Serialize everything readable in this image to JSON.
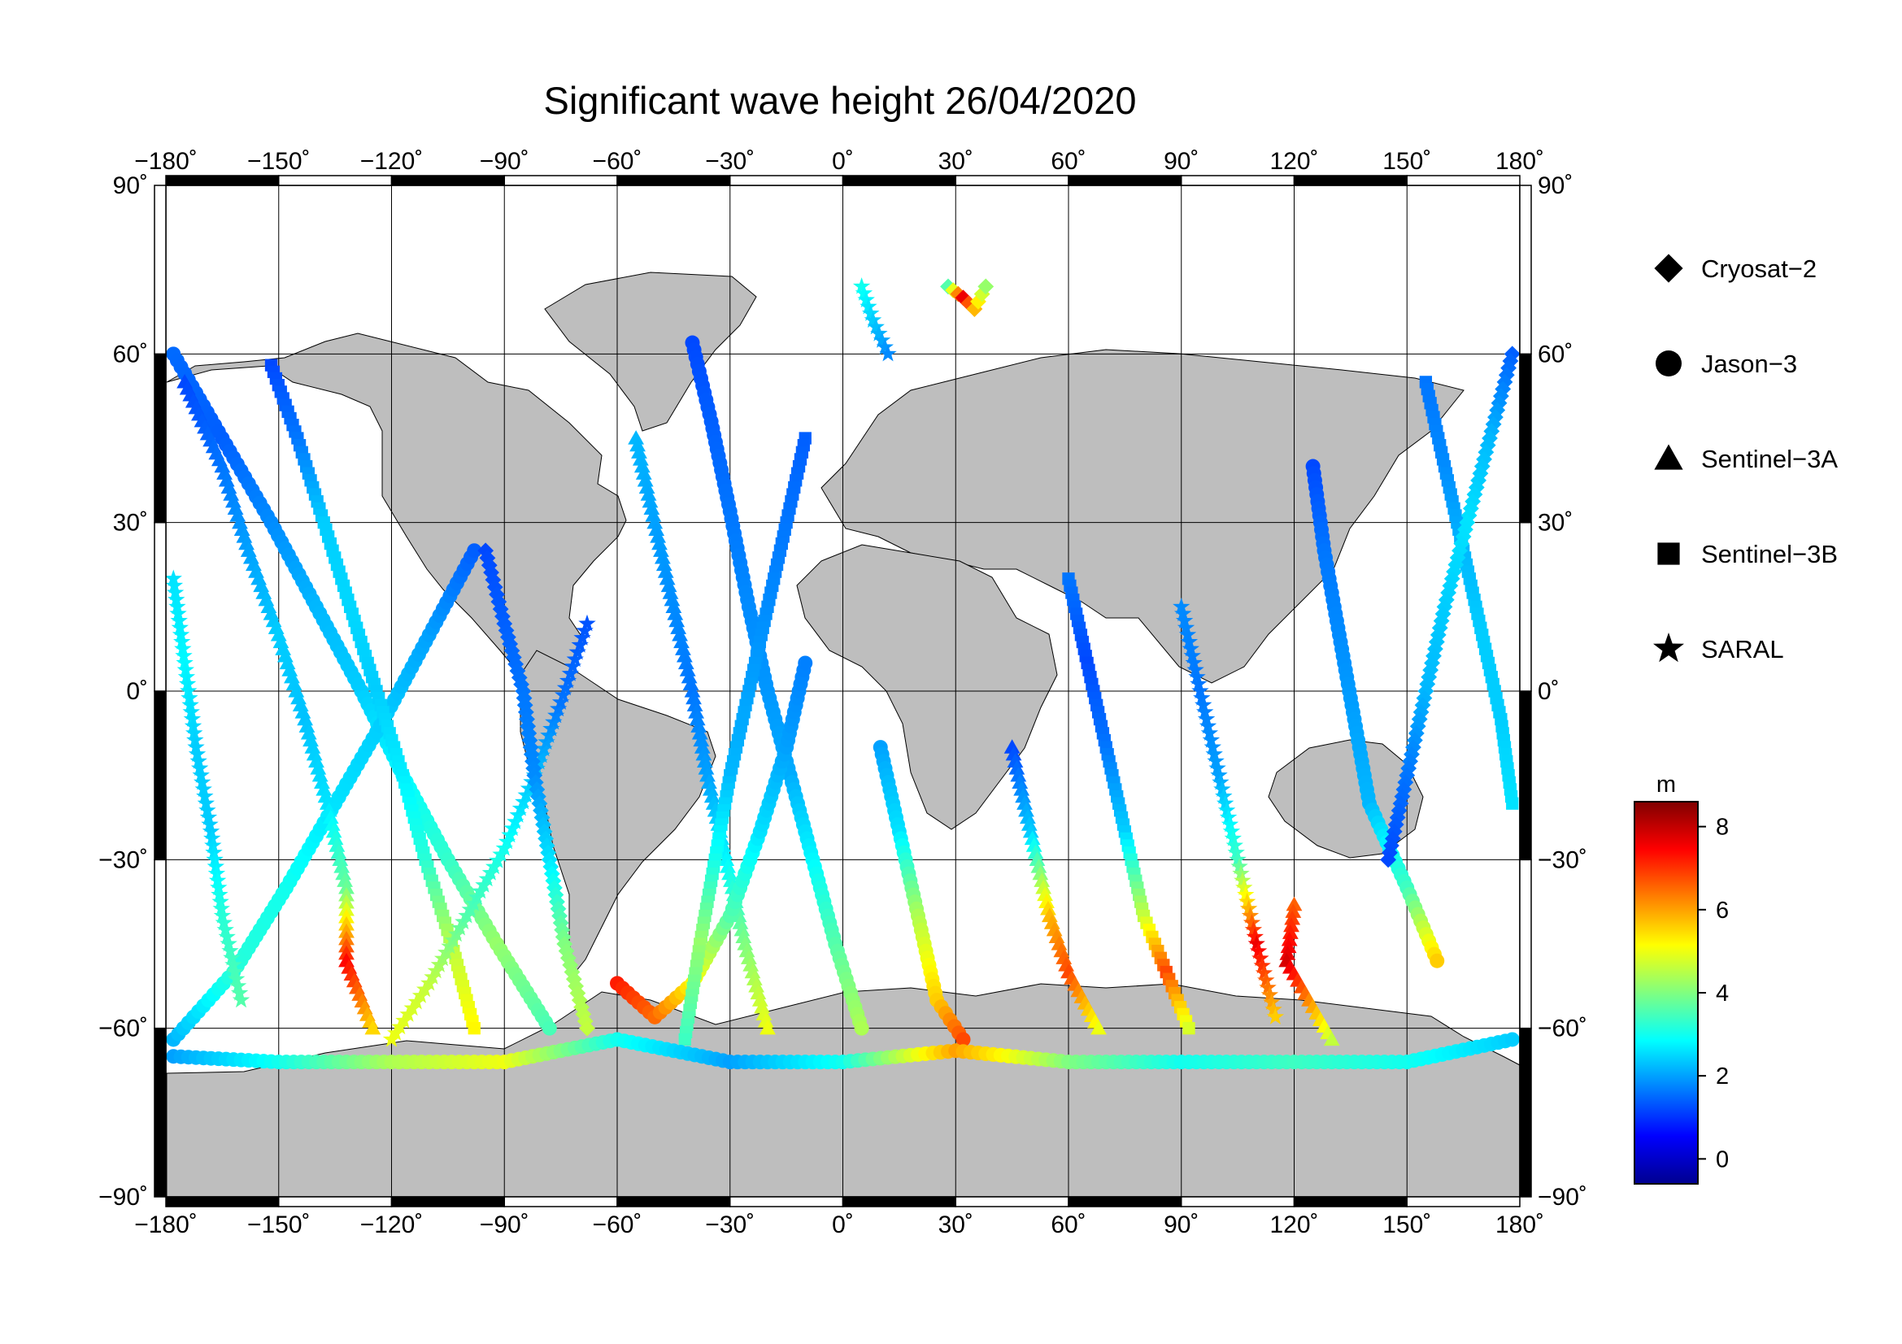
{
  "title": "Significant wave height 26/04/2020",
  "map": {
    "lon_range": [
      -180,
      180
    ],
    "lat_range": [
      -90,
      90
    ],
    "lon_ticks": [
      -180,
      -150,
      -120,
      -90,
      -60,
      -30,
      0,
      30,
      60,
      90,
      120,
      150,
      180
    ],
    "lat_ticks": [
      -90,
      -60,
      -30,
      0,
      30,
      60,
      90
    ],
    "lon_tick_labels": [
      "−180˚",
      "−150˚",
      "−120˚",
      "−90˚",
      "−60˚",
      "−30˚",
      "0˚",
      "30˚",
      "60˚",
      "90˚",
      "120˚",
      "150˚",
      "180˚"
    ],
    "lat_tick_labels": [
      "−90˚",
      "−60˚",
      "−30˚",
      "0˚",
      "30˚",
      "60˚",
      "90˚"
    ],
    "land_color": "#bebebe",
    "ocean_color": "#ffffff",
    "grid": true
  },
  "legend": {
    "placement": "right",
    "items": [
      {
        "symbol": "diamond",
        "label": "Cryosat−2"
      },
      {
        "symbol": "circle",
        "label": "Jason−3"
      },
      {
        "symbol": "triangle",
        "label": "Sentinel−3A"
      },
      {
        "symbol": "square",
        "label": "Sentinel−3B"
      },
      {
        "symbol": "star",
        "label": "SARAL"
      }
    ]
  },
  "colorbar": {
    "unit": "m",
    "range": [
      -0.6,
      8.6
    ],
    "ticks": [
      0,
      2,
      4,
      6,
      8
    ],
    "tick_labels": [
      "0",
      "2",
      "4",
      "6",
      "8"
    ],
    "colors": [
      "#00008f",
      "#0000ff",
      "#0080ff",
      "#00ffff",
      "#80ff80",
      "#ffff00",
      "#ff8000",
      "#ff0000",
      "#800000"
    ]
  },
  "chart_data": {
    "type": "scatter",
    "title": "Significant wave height 26/04/2020",
    "xlabel": "",
    "ylabel": "",
    "xlim": [
      -180,
      180
    ],
    "ylim": [
      -90,
      90
    ],
    "value_unit": "m",
    "tracks": [
      {
        "symbol": "circle",
        "points": [
          [
            -178,
            60,
            1.5
          ],
          [
            -165,
            45,
            1.4
          ],
          [
            -152,
            30,
            1.8
          ],
          [
            -140,
            15,
            2.2
          ],
          [
            -128,
            0,
            2.4
          ],
          [
            -117,
            -15,
            2.8
          ],
          [
            -105,
            -30,
            3.3
          ],
          [
            -92,
            -45,
            4.2
          ],
          [
            -78,
            -60,
            3.5
          ]
        ]
      },
      {
        "symbol": "circle",
        "points": [
          [
            -178,
            -62,
            2.2
          ],
          [
            -162,
            -50,
            3.2
          ],
          [
            -148,
            -35,
            3.0
          ],
          [
            -135,
            -20,
            2.6
          ],
          [
            -122,
            -5,
            2.4
          ],
          [
            -110,
            10,
            2.0
          ],
          [
            -98,
            25,
            1.4
          ]
        ]
      },
      {
        "symbol": "triangle",
        "points": [
          [
            -175,
            55,
            1.2
          ],
          [
            -165,
            40,
            1.6
          ],
          [
            -158,
            25,
            2.0
          ],
          [
            -150,
            10,
            2.4
          ],
          [
            -143,
            -5,
            2.3
          ],
          [
            -137,
            -20,
            2.6
          ],
          [
            -132,
            -35,
            3.8
          ],
          [
            -132,
            -48,
            7.4
          ],
          [
            -125,
            -60,
            5.5
          ]
        ]
      },
      {
        "symbol": "square",
        "points": [
          [
            -152,
            58,
            1.2
          ],
          [
            -145,
            45,
            1.6
          ],
          [
            -138,
            30,
            2.4
          ],
          [
            -131,
            15,
            2.5
          ],
          [
            -124,
            0,
            2.4
          ],
          [
            -117,
            -15,
            2.7
          ],
          [
            -111,
            -30,
            3.2
          ],
          [
            -104,
            -45,
            4.5
          ],
          [
            -98,
            -60,
            5.2
          ]
        ]
      },
      {
        "symbol": "star",
        "points": [
          [
            -120,
            -62,
            5.0
          ],
          [
            -110,
            -52,
            4.6
          ],
          [
            -100,
            -40,
            3.6
          ],
          [
            -90,
            -28,
            3.0
          ],
          [
            -82,
            -15,
            2.3
          ],
          [
            -75,
            -2,
            1.6
          ],
          [
            -68,
            12,
            1.3
          ]
        ]
      },
      {
        "symbol": "diamond",
        "points": [
          [
            -95,
            25,
            1.2
          ],
          [
            -90,
            12,
            1.4
          ],
          [
            -85,
            0,
            1.6
          ],
          [
            -82,
            -15,
            1.8
          ],
          [
            -78,
            -30,
            2.6
          ],
          [
            -74,
            -45,
            4.0
          ],
          [
            -68,
            -60,
            4.6
          ]
        ]
      },
      {
        "symbol": "circle",
        "points": [
          [
            -40,
            62,
            1.2
          ],
          [
            -35,
            48,
            1.4
          ],
          [
            -30,
            32,
            1.6
          ],
          [
            -25,
            15,
            1.8
          ],
          [
            -20,
            0,
            1.9
          ],
          [
            -14,
            -15,
            2.1
          ],
          [
            -8,
            -30,
            2.8
          ],
          [
            -2,
            -45,
            3.6
          ],
          [
            5,
            -60,
            4.4
          ]
        ]
      },
      {
        "symbol": "triangle",
        "points": [
          [
            -55,
            45,
            2.2
          ],
          [
            -50,
            30,
            2.0
          ],
          [
            -45,
            15,
            1.8
          ],
          [
            -40,
            0,
            1.6
          ],
          [
            -36,
            -15,
            2.0
          ],
          [
            -31,
            -30,
            2.8
          ],
          [
            -26,
            -45,
            4.0
          ],
          [
            -20,
            -60,
            5.0
          ]
        ]
      },
      {
        "symbol": "circle",
        "points": [
          [
            -60,
            -52,
            7.2
          ],
          [
            -50,
            -58,
            6.5
          ],
          [
            -40,
            -52,
            5.2
          ],
          [
            -30,
            -40,
            3.6
          ],
          [
            -22,
            -25,
            2.6
          ],
          [
            -15,
            -10,
            2.0
          ],
          [
            -10,
            5,
            1.7
          ]
        ]
      },
      {
        "symbol": "square",
        "points": [
          [
            -10,
            45,
            1.4
          ],
          [
            -15,
            30,
            1.6
          ],
          [
            -20,
            15,
            1.8
          ],
          [
            -25,
            0,
            2.0
          ],
          [
            -30,
            -15,
            2.2
          ],
          [
            -34,
            -30,
            3.0
          ],
          [
            -38,
            -45,
            4.2
          ],
          [
            -42,
            -62,
            3.4
          ]
        ]
      },
      {
        "symbol": "star",
        "points": [
          [
            5,
            72,
            3.0
          ],
          [
            8,
            66,
            2.4
          ],
          [
            12,
            60,
            1.8
          ]
        ]
      },
      {
        "symbol": "diamond",
        "points": [
          [
            28,
            72,
            3.6
          ],
          [
            32,
            70,
            7.6
          ],
          [
            35,
            68,
            5.8
          ],
          [
            38,
            72,
            4.2
          ]
        ]
      },
      {
        "symbol": "circle",
        "points": [
          [
            10,
            -10,
            2.0
          ],
          [
            15,
            -25,
            2.6
          ],
          [
            20,
            -40,
            4.4
          ],
          [
            25,
            -55,
            5.6
          ],
          [
            32,
            -62,
            6.8
          ]
        ]
      },
      {
        "symbol": "triangle",
        "points": [
          [
            45,
            -10,
            1.2
          ],
          [
            50,
            -25,
            2.4
          ],
          [
            55,
            -40,
            5.8
          ],
          [
            60,
            -50,
            6.8
          ],
          [
            68,
            -60,
            5.0
          ]
        ]
      },
      {
        "symbol": "square",
        "points": [
          [
            60,
            20,
            1.6
          ],
          [
            65,
            5,
            1.2
          ],
          [
            70,
            -10,
            1.6
          ],
          [
            75,
            -25,
            2.4
          ],
          [
            80,
            -40,
            4.6
          ],
          [
            86,
            -50,
            6.8
          ],
          [
            92,
            -60,
            4.8
          ]
        ]
      },
      {
        "symbol": "star",
        "points": [
          [
            90,
            15,
            1.8
          ],
          [
            95,
            0,
            1.6
          ],
          [
            100,
            -15,
            2.0
          ],
          [
            105,
            -30,
            3.4
          ],
          [
            110,
            -45,
            7.6
          ],
          [
            115,
            -58,
            5.6
          ]
        ]
      },
      {
        "symbol": "circle",
        "points": [
          [
            125,
            40,
            1.2
          ],
          [
            128,
            25,
            1.6
          ],
          [
            132,
            10,
            1.8
          ],
          [
            136,
            -5,
            2.0
          ],
          [
            140,
            -20,
            2.2
          ],
          [
            150,
            -35,
            3.4
          ],
          [
            158,
            -48,
            5.6
          ]
        ]
      },
      {
        "symbol": "triangle",
        "points": [
          [
            120,
            -38,
            6.6
          ],
          [
            118,
            -48,
            7.8
          ],
          [
            124,
            -55,
            6.2
          ],
          [
            130,
            -62,
            4.6
          ]
        ]
      },
      {
        "symbol": "square",
        "points": [
          [
            155,
            55,
            1.6
          ],
          [
            160,
            40,
            1.8
          ],
          [
            165,
            25,
            2.2
          ],
          [
            170,
            10,
            2.4
          ],
          [
            175,
            -5,
            2.4
          ],
          [
            178,
            -20,
            2.6
          ]
        ]
      },
      {
        "symbol": "diamond",
        "points": [
          [
            178,
            60,
            1.4
          ],
          [
            172,
            45,
            2.2
          ],
          [
            166,
            30,
            2.6
          ],
          [
            160,
            15,
            2.4
          ],
          [
            155,
            0,
            2.2
          ],
          [
            150,
            -15,
            1.6
          ],
          [
            145,
            -30,
            1.2
          ]
        ]
      },
      {
        "symbol": "star",
        "points": [
          [
            -178,
            20,
            2.6
          ],
          [
            -175,
            5,
            2.8
          ],
          [
            -172,
            -10,
            2.4
          ],
          [
            -168,
            -25,
            2.4
          ],
          [
            -165,
            -40,
            3.2
          ],
          [
            -160,
            -55,
            3.6
          ]
        ]
      },
      {
        "symbol": "circle",
        "points": [
          [
            -178,
            -65,
            2.0
          ],
          [
            -150,
            -66,
            3.0
          ],
          [
            -120,
            -66,
            4.4
          ],
          [
            -90,
            -66,
            5.0
          ],
          [
            -60,
            -62,
            3.0
          ],
          [
            -30,
            -66,
            2.0
          ],
          [
            0,
            -66,
            3.0
          ],
          [
            30,
            -64,
            6.0
          ],
          [
            60,
            -66,
            4.0
          ],
          [
            90,
            -66,
            3.0
          ],
          [
            120,
            -66,
            3.4
          ],
          [
            150,
            -66,
            3.0
          ],
          [
            178,
            -62,
            2.4
          ]
        ]
      }
    ]
  }
}
